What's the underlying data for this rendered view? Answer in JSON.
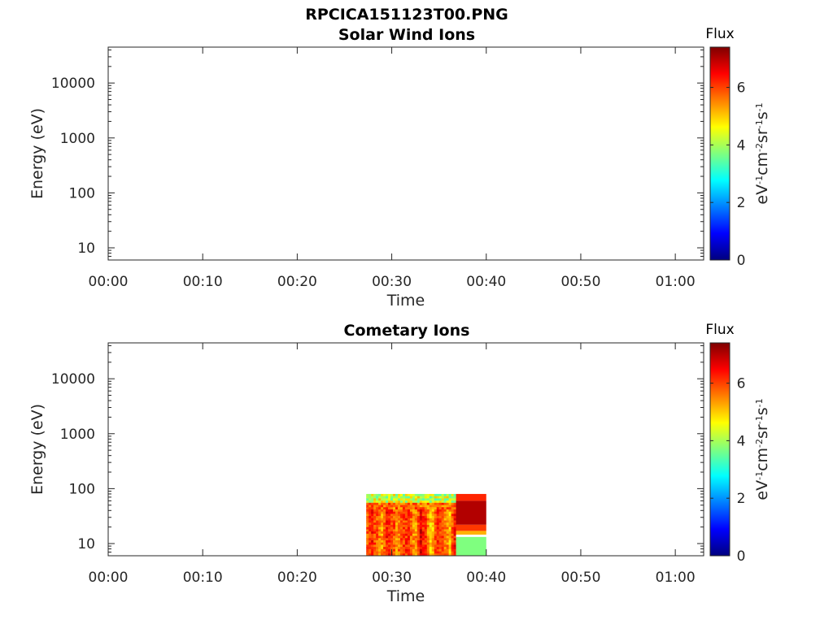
{
  "figure": {
    "title": "RPCICA151123T00.PNG"
  },
  "colors": {
    "colormap": [
      "#00007f",
      "#0000ff",
      "#007fff",
      "#00ffff",
      "#7fff7f",
      "#ffff00",
      "#ff7f00",
      "#ff0000",
      "#7f0000"
    ],
    "axis": "#262626"
  },
  "chart_data": [
    {
      "type": "heatmap",
      "title": "Solar Wind Ions",
      "xlabel": "Time",
      "ylabel": "Energy (eV)",
      "x_ticks": [
        "00:00",
        "00:10",
        "00:20",
        "00:30",
        "00:40",
        "00:50",
        "01:00"
      ],
      "x_range_minutes": [
        0,
        63
      ],
      "y_scale": "log",
      "y_ticks": [
        "10",
        "100",
        "1000",
        "10000"
      ],
      "y_range": [
        6,
        45000
      ],
      "colorbar": {
        "label": "Flux",
        "unit": "eV-1cm-2sr-1s-1",
        "ticks": [
          "0",
          "2",
          "4",
          "6"
        ],
        "range": [
          0,
          7.4
        ]
      },
      "data_blocks": []
    },
    {
      "type": "heatmap",
      "title": "Cometary Ions",
      "xlabel": "Time",
      "ylabel": "Energy (eV)",
      "x_ticks": [
        "00:00",
        "00:10",
        "00:20",
        "00:30",
        "00:40",
        "00:50",
        "01:00"
      ],
      "x_range_minutes": [
        0,
        63
      ],
      "y_scale": "log",
      "y_ticks": [
        "10",
        "100",
        "1000",
        "10000"
      ],
      "y_range": [
        6,
        45000
      ],
      "colorbar": {
        "label": "Flux",
        "unit": "eV-1cm-2sr-1s-1",
        "ticks": [
          "0",
          "2",
          "4",
          "6"
        ],
        "range": [
          0,
          7.4
        ]
      },
      "data_blocks": [
        {
          "t_start": 27.3,
          "t_end": 36.8,
          "e_low": 6,
          "e_high": 80,
          "flux": "variable high (5-7.4), lower at top energies"
        },
        {
          "t_start": 36.8,
          "t_end": 40.0,
          "e_low": 6,
          "e_high": 80,
          "flux": "high (~7) above 20 eV, ~4 below 13 eV"
        }
      ]
    }
  ]
}
